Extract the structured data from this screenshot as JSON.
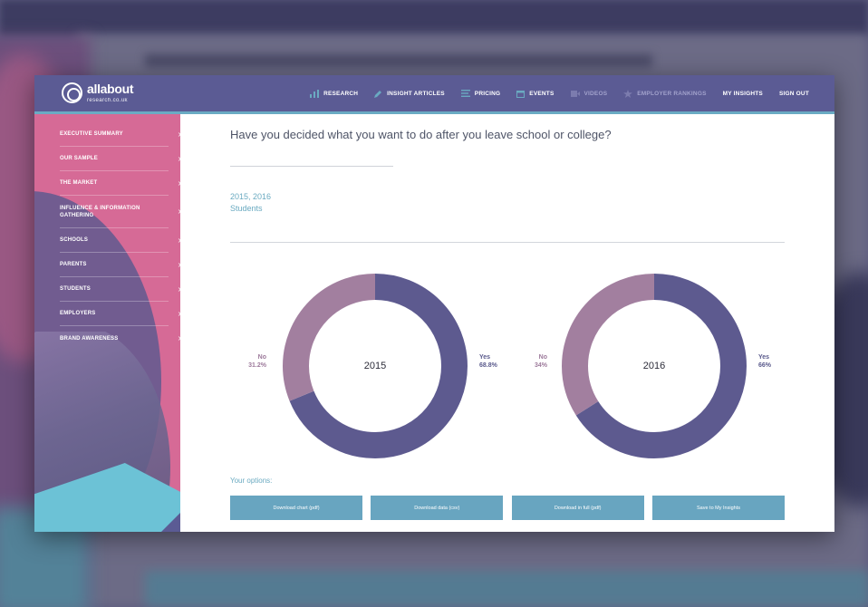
{
  "nav": {
    "logo_main": "allabout",
    "logo_sub": "research.co.uk",
    "links": [
      {
        "label": "RESEARCH",
        "icon": "bar-chart-icon",
        "dim": false
      },
      {
        "label": "INSIGHT ARTICLES",
        "icon": "pencil-icon",
        "dim": false
      },
      {
        "label": "PRICING",
        "icon": "list-icon",
        "dim": false
      },
      {
        "label": "EVENTS",
        "icon": "calendar-icon",
        "dim": false
      },
      {
        "label": "VIDEOS",
        "icon": "video-icon",
        "dim": true
      },
      {
        "label": "EMPLOYER RANKINGS",
        "icon": "star-icon",
        "dim": true
      },
      {
        "label": "MY INSIGHTS",
        "icon": "",
        "dim": false
      },
      {
        "label": "SIGN OUT",
        "icon": "",
        "dim": false
      }
    ]
  },
  "sidebar": {
    "items": [
      {
        "label": "EXECUTIVE SUMMARY"
      },
      {
        "label": "OUR SAMPLE"
      },
      {
        "label": "THE MARKET"
      },
      {
        "label": "INFLUENCE & INFORMATION GATHERING"
      },
      {
        "label": "SCHOOLS"
      },
      {
        "label": "PARENTS"
      },
      {
        "label": "STUDENTS"
      },
      {
        "label": "EMPLOYERS"
      },
      {
        "label": "BRAND AWARENESS"
      }
    ]
  },
  "main": {
    "question": "Have you decided what you want to do after you leave school or college?",
    "years": "2015, 2016",
    "audience": "Students",
    "options_label": "Your options:",
    "buttons": [
      {
        "label": "Download chart (pdf)"
      },
      {
        "label": "Download data (csv)"
      },
      {
        "label": "Download in full (pdf)"
      },
      {
        "label": "Save to My Insights"
      }
    ]
  },
  "colors": {
    "nav": "#5b5b94",
    "sidebar_pink": "#d66a96",
    "yes": "#5d5a8f",
    "no": "#a27f9f",
    "accent": "#68a5c0"
  },
  "chart_data": [
    {
      "type": "pie",
      "center_label": "2015",
      "slices": [
        {
          "name": "Yes",
          "value": 68.8,
          "label": "68.8%"
        },
        {
          "name": "No",
          "value": 31.2,
          "label": "31.2%"
        }
      ]
    },
    {
      "type": "pie",
      "center_label": "2016",
      "slices": [
        {
          "name": "Yes",
          "value": 66,
          "label": "66%"
        },
        {
          "name": "No",
          "value": 34,
          "label": "34%"
        }
      ]
    }
  ]
}
